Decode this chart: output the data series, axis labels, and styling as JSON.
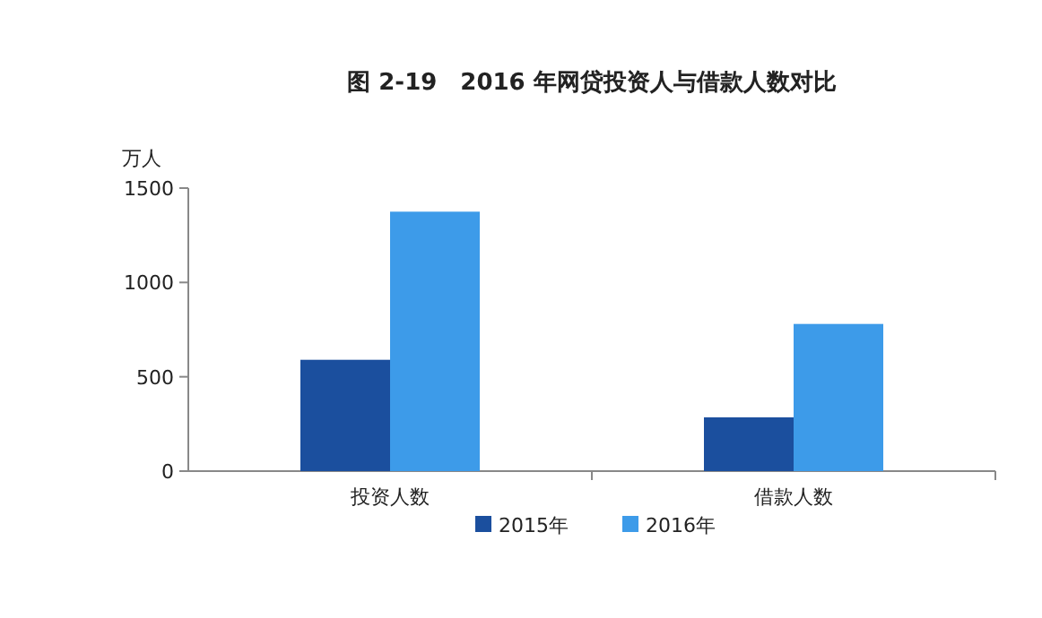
{
  "chart_data": {
    "type": "bar",
    "title": "图 2-19　2016 年网贷投资人与借款人数对比",
    "ylabel": "万人",
    "categories": [
      "投资人数",
      "借款人数"
    ],
    "series": [
      {
        "name": "2015年",
        "color": "#1b4f9e",
        "values": [
          590,
          285
        ]
      },
      {
        "name": "2016年",
        "color": "#3d9be9",
        "values": [
          1375,
          780
        ]
      }
    ],
    "ylim": [
      0,
      1500
    ],
    "yticks": [
      0,
      500,
      1000,
      1500
    ],
    "legend": "bottom",
    "grid": false
  }
}
